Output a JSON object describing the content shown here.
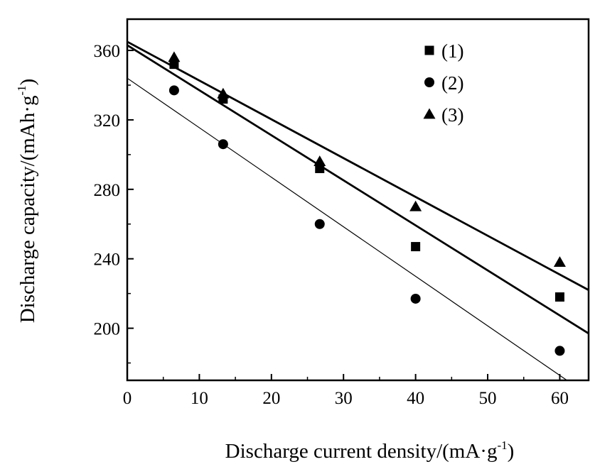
{
  "chart_data": {
    "type": "scatter",
    "x_label_main": "Discharge current density/(mA·g",
    "x_label_sup": "-1",
    "x_label_close": ")",
    "y_label_main": "Discharge capacity/(mAh·g",
    "y_label_sup": "-1",
    "y_label_close": ")",
    "xlim": [
      0,
      64
    ],
    "ylim": [
      170,
      378
    ],
    "x_ticks": [
      0,
      10,
      20,
      30,
      40,
      50,
      60
    ],
    "y_ticks": [
      200,
      240,
      280,
      320,
      360
    ],
    "x_tick_labels": [
      "0",
      "10",
      "20",
      "30",
      "40",
      "50",
      "60"
    ],
    "y_tick_labels": [
      "200",
      "240",
      "280",
      "320",
      "360"
    ],
    "grid": false,
    "legend_position": "top-right",
    "series": [
      {
        "name": "(1)",
        "marker": "square",
        "x": [
          6.5,
          13.3,
          26.7,
          40,
          60
        ],
        "y": [
          352,
          332,
          292,
          247,
          218
        ],
        "fit_line": [
          [
            0,
            363
          ],
          [
            64,
            197
          ]
        ],
        "fit_weight": "bold"
      },
      {
        "name": "(2)",
        "marker": "circle",
        "x": [
          6.5,
          13.3,
          26.7,
          40,
          60
        ],
        "y": [
          337,
          306,
          260,
          217,
          187
        ],
        "fit_line": [
          [
            0,
            344
          ],
          [
            61,
            170
          ]
        ],
        "fit_weight": "thin"
      },
      {
        "name": "(3)",
        "marker": "triangle",
        "x": [
          6.5,
          13.3,
          26.7,
          40,
          60
        ],
        "y": [
          356,
          335,
          296,
          270,
          238
        ],
        "fit_line": [
          [
            0,
            365
          ],
          [
            64,
            222
          ]
        ],
        "fit_weight": "bold"
      }
    ]
  }
}
